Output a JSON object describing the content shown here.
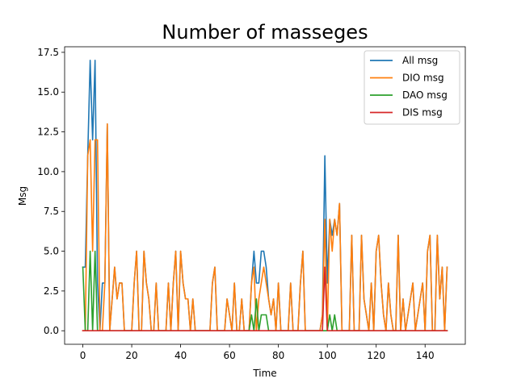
{
  "chart_data": {
    "type": "line",
    "title": "Number of masseges",
    "xlabel": "Time",
    "ylabel": "Msg",
    "xlim": [
      -7.45,
      156.45
    ],
    "ylim": [
      -0.85,
      17.85
    ],
    "xticks": [
      0,
      20,
      40,
      60,
      80,
      100,
      120,
      140
    ],
    "yticks": [
      0.0,
      2.5,
      5.0,
      7.5,
      10.0,
      12.5,
      15.0,
      17.5
    ],
    "ytick_labels": [
      "0.0",
      "2.5",
      "5.0",
      "7.5",
      "10.0",
      "12.5",
      "15.0",
      "17.5"
    ],
    "legend_position": "top-right",
    "grid": false,
    "x": [
      0,
      1,
      2,
      3,
      4,
      5,
      6,
      7,
      8,
      9,
      10,
      11,
      12,
      13,
      14,
      15,
      16,
      17,
      18,
      19,
      20,
      21,
      22,
      23,
      24,
      25,
      26,
      27,
      28,
      29,
      30,
      31,
      32,
      33,
      34,
      35,
      36,
      37,
      38,
      39,
      40,
      41,
      42,
      43,
      44,
      45,
      46,
      47,
      48,
      49,
      50,
      51,
      52,
      53,
      54,
      55,
      56,
      57,
      58,
      59,
      60,
      61,
      62,
      63,
      64,
      65,
      66,
      67,
      68,
      69,
      70,
      71,
      72,
      73,
      74,
      75,
      76,
      77,
      78,
      79,
      80,
      81,
      82,
      83,
      84,
      85,
      86,
      87,
      88,
      89,
      90,
      91,
      92,
      93,
      94,
      95,
      96,
      97,
      98,
      99,
      100,
      101,
      102,
      103,
      104,
      105,
      106,
      107,
      108,
      109,
      110,
      111,
      112,
      113,
      114,
      115,
      116,
      117,
      118,
      119,
      120,
      121,
      122,
      123,
      124,
      125,
      126,
      127,
      128,
      129,
      130,
      131,
      132,
      133,
      134,
      135,
      136,
      137,
      138,
      139,
      140,
      141,
      142,
      143,
      144,
      145,
      146,
      147,
      148,
      149
    ],
    "series": [
      {
        "name": "All msg",
        "color": "#1f77b4",
        "values": [
          4,
          4,
          11,
          17,
          12,
          17,
          3,
          0,
          3,
          3,
          13,
          0,
          2,
          4,
          2,
          3,
          3,
          0,
          0,
          0,
          0,
          3,
          5,
          0,
          0,
          5,
          3,
          2,
          0,
          0,
          3,
          0,
          0,
          0,
          0,
          3,
          0,
          3,
          5,
          0,
          5,
          3,
          2,
          2,
          0,
          2,
          0,
          0,
          0,
          0,
          0,
          0,
          0,
          3,
          4,
          0,
          0,
          0,
          0,
          2,
          1,
          0,
          3,
          0,
          0,
          2,
          0,
          0,
          0,
          3,
          5,
          3,
          3,
          5,
          5,
          4,
          2,
          1,
          2,
          0,
          3,
          0,
          0,
          0,
          0,
          3,
          0,
          0,
          0,
          3,
          5,
          0,
          0,
          0,
          0,
          0,
          0,
          0,
          1,
          11,
          3,
          7,
          6,
          7,
          6,
          8,
          0,
          0,
          0,
          0,
          6,
          0,
          0,
          0,
          6,
          2,
          1,
          0,
          3,
          0,
          5,
          6,
          3,
          1,
          0,
          3,
          1,
          0,
          0,
          6,
          0,
          2,
          0,
          1,
          2,
          3,
          0,
          1,
          2,
          3,
          0,
          5,
          6,
          0,
          0,
          6,
          2,
          4,
          0,
          4
        ],
        "values_note_omitted": true
      },
      {
        "name": "DIO msg",
        "color": "#ff7f0e",
        "values": [
          0,
          0,
          11,
          12,
          5,
          12,
          12,
          0,
          0,
          3,
          13,
          0,
          2,
          4,
          2,
          3,
          3,
          0,
          0,
          0,
          0,
          3,
          5,
          0,
          0,
          5,
          3,
          2,
          0,
          0,
          3,
          0,
          0,
          0,
          0,
          3,
          0,
          3,
          5,
          0,
          5,
          3,
          2,
          2,
          0,
          2,
          0,
          0,
          0,
          0,
          0,
          0,
          0,
          3,
          4,
          0,
          0,
          0,
          0,
          2,
          1,
          0,
          3,
          0,
          0,
          2,
          0,
          0,
          0,
          3,
          4,
          0,
          2,
          3,
          4,
          3,
          2,
          1,
          2,
          0,
          3,
          0,
          0,
          0,
          0,
          3,
          0,
          0,
          0,
          3,
          5,
          0,
          0,
          0,
          0,
          0,
          0,
          0,
          1,
          7,
          0,
          7,
          5,
          7,
          6,
          8,
          0,
          0,
          0,
          0,
          6,
          0,
          0,
          0,
          6,
          2,
          1,
          0,
          3,
          0,
          5,
          6,
          3,
          1,
          0,
          3,
          1,
          0,
          0,
          6,
          0,
          2,
          0,
          1,
          2,
          3,
          0,
          1,
          2,
          3,
          0,
          5,
          6,
          0,
          0,
          6,
          2,
          4,
          0,
          4
        ]
      },
      {
        "name": "DAO msg",
        "color": "#2ca02c",
        "values": [
          4,
          0,
          0,
          5,
          0,
          5,
          0,
          0,
          0,
          0,
          0,
          0,
          0,
          0,
          0,
          0,
          0,
          0,
          0,
          0,
          0,
          0,
          0,
          0,
          0,
          0,
          0,
          0,
          0,
          0,
          0,
          0,
          0,
          0,
          0,
          0,
          0,
          0,
          0,
          0,
          0,
          0,
          0,
          0,
          0,
          0,
          0,
          0,
          0,
          0,
          0,
          0,
          0,
          0,
          0,
          0,
          0,
          0,
          0,
          0,
          0,
          0,
          0,
          0,
          0,
          0,
          0,
          0,
          0,
          1,
          0,
          2,
          0,
          1,
          1,
          1,
          0,
          0,
          0,
          0,
          0,
          0,
          0,
          0,
          0,
          0,
          0,
          0,
          0,
          0,
          0,
          0,
          0,
          0,
          0,
          0,
          0,
          0,
          0,
          0,
          0,
          1,
          0,
          1,
          0,
          0,
          0,
          0,
          0,
          0,
          0,
          0,
          0,
          0,
          0,
          0,
          0,
          0,
          0,
          0,
          0,
          0,
          0,
          0,
          0,
          0,
          0,
          0,
          0,
          0,
          0,
          0,
          0,
          0,
          0,
          0,
          0,
          0,
          0,
          0,
          0,
          0,
          0,
          0,
          0,
          0,
          0,
          0,
          0,
          0
        ]
      },
      {
        "name": "DIS msg",
        "color": "#d62728",
        "values": [
          0,
          0,
          0,
          0,
          0,
          0,
          0,
          0,
          0,
          0,
          0,
          0,
          0,
          0,
          0,
          0,
          0,
          0,
          0,
          0,
          0,
          0,
          0,
          0,
          0,
          0,
          0,
          0,
          0,
          0,
          0,
          0,
          0,
          0,
          0,
          0,
          0,
          0,
          0,
          0,
          0,
          0,
          0,
          0,
          0,
          0,
          0,
          0,
          0,
          0,
          0,
          0,
          0,
          0,
          0,
          0,
          0,
          0,
          0,
          0,
          0,
          0,
          0,
          0,
          0,
          0,
          0,
          0,
          0,
          0,
          0,
          0,
          0,
          0,
          0,
          0,
          0,
          0,
          0,
          0,
          0,
          0,
          0,
          0,
          0,
          0,
          0,
          0,
          0,
          0,
          0,
          0,
          0,
          0,
          0,
          0,
          0,
          0,
          0,
          4,
          0,
          0,
          0,
          0,
          0,
          0,
          0,
          0,
          0,
          0,
          0,
          0,
          0,
          0,
          0,
          0,
          0,
          0,
          0,
          0,
          0,
          0,
          0,
          0,
          0,
          0,
          0,
          0,
          0,
          0,
          0,
          0,
          0,
          0,
          0,
          0,
          0,
          0,
          0,
          0,
          0,
          0,
          0,
          0,
          0,
          0,
          0,
          0,
          0,
          0
        ]
      }
    ]
  }
}
